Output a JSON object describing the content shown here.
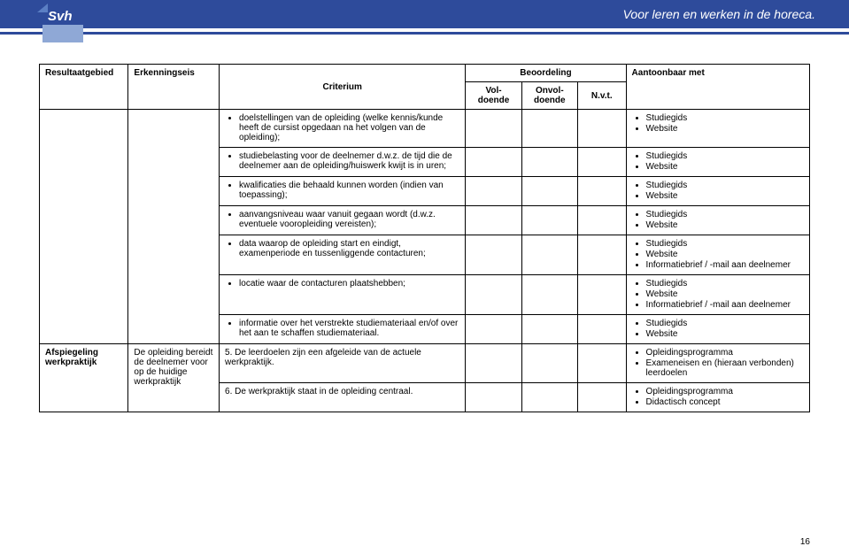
{
  "header": {
    "tagline": "Voor leren en werken in de horeca.",
    "logo_text": "Svh"
  },
  "table": {
    "headers": {
      "resultaatgebied": "Resultaatgebied",
      "erkenningseis": "Erkenningseis",
      "criterium": "Criterium",
      "beoordeling": "Beoordeling",
      "voldoende": "Vol-doende",
      "onvoldoende": "Onvol-doende",
      "nvt": "N.v.t.",
      "aantoonbaar": "Aantoonbaar met"
    },
    "criteria": [
      "doelstellingen van de opleiding (welke kennis/kunde heeft de cursist opgedaan na het volgen van de opleiding);",
      "studiebelasting voor de deelnemer d.w.z. de tijd die de deelnemer aan de opleiding/huiswerk kwijt is in uren;",
      "kwalificaties die behaald kunnen worden (indien van toepassing);",
      "aanvangsniveau waar vanuit gegaan wordt (d.w.z. eventuele vooropleiding vereisten);",
      "data waarop de opleiding start en eindigt, examenperiode en tussenliggende contacturen;",
      "locatie waar de contacturen plaatshebben;",
      "informatie over het verstrekte studiemateriaal en/of over het aan te schaffen studiemateriaal."
    ],
    "evidence_sg": "Studiegids",
    "evidence_ws": "Website",
    "evidence_info": "Informatiebrief / -mail aan deelnemer",
    "row2": {
      "resultaat": "Afspiegeling werkpraktijk",
      "erkenning": "De opleiding bereidt de deelnemer voor op de huidige werkpraktijk",
      "crit5": "5. De leerdoelen zijn een afgeleide van de actuele werkpraktijk.",
      "crit6": "6. De werkpraktijk staat in de opleiding centraal.",
      "ev5a": "Opleidingsprogramma",
      "ev5b": "Exameneisen en (hieraan verbonden) leerdoelen",
      "ev6a": "Opleidingsprogramma",
      "ev6b": "Didactisch concept"
    }
  },
  "page_number": "16"
}
